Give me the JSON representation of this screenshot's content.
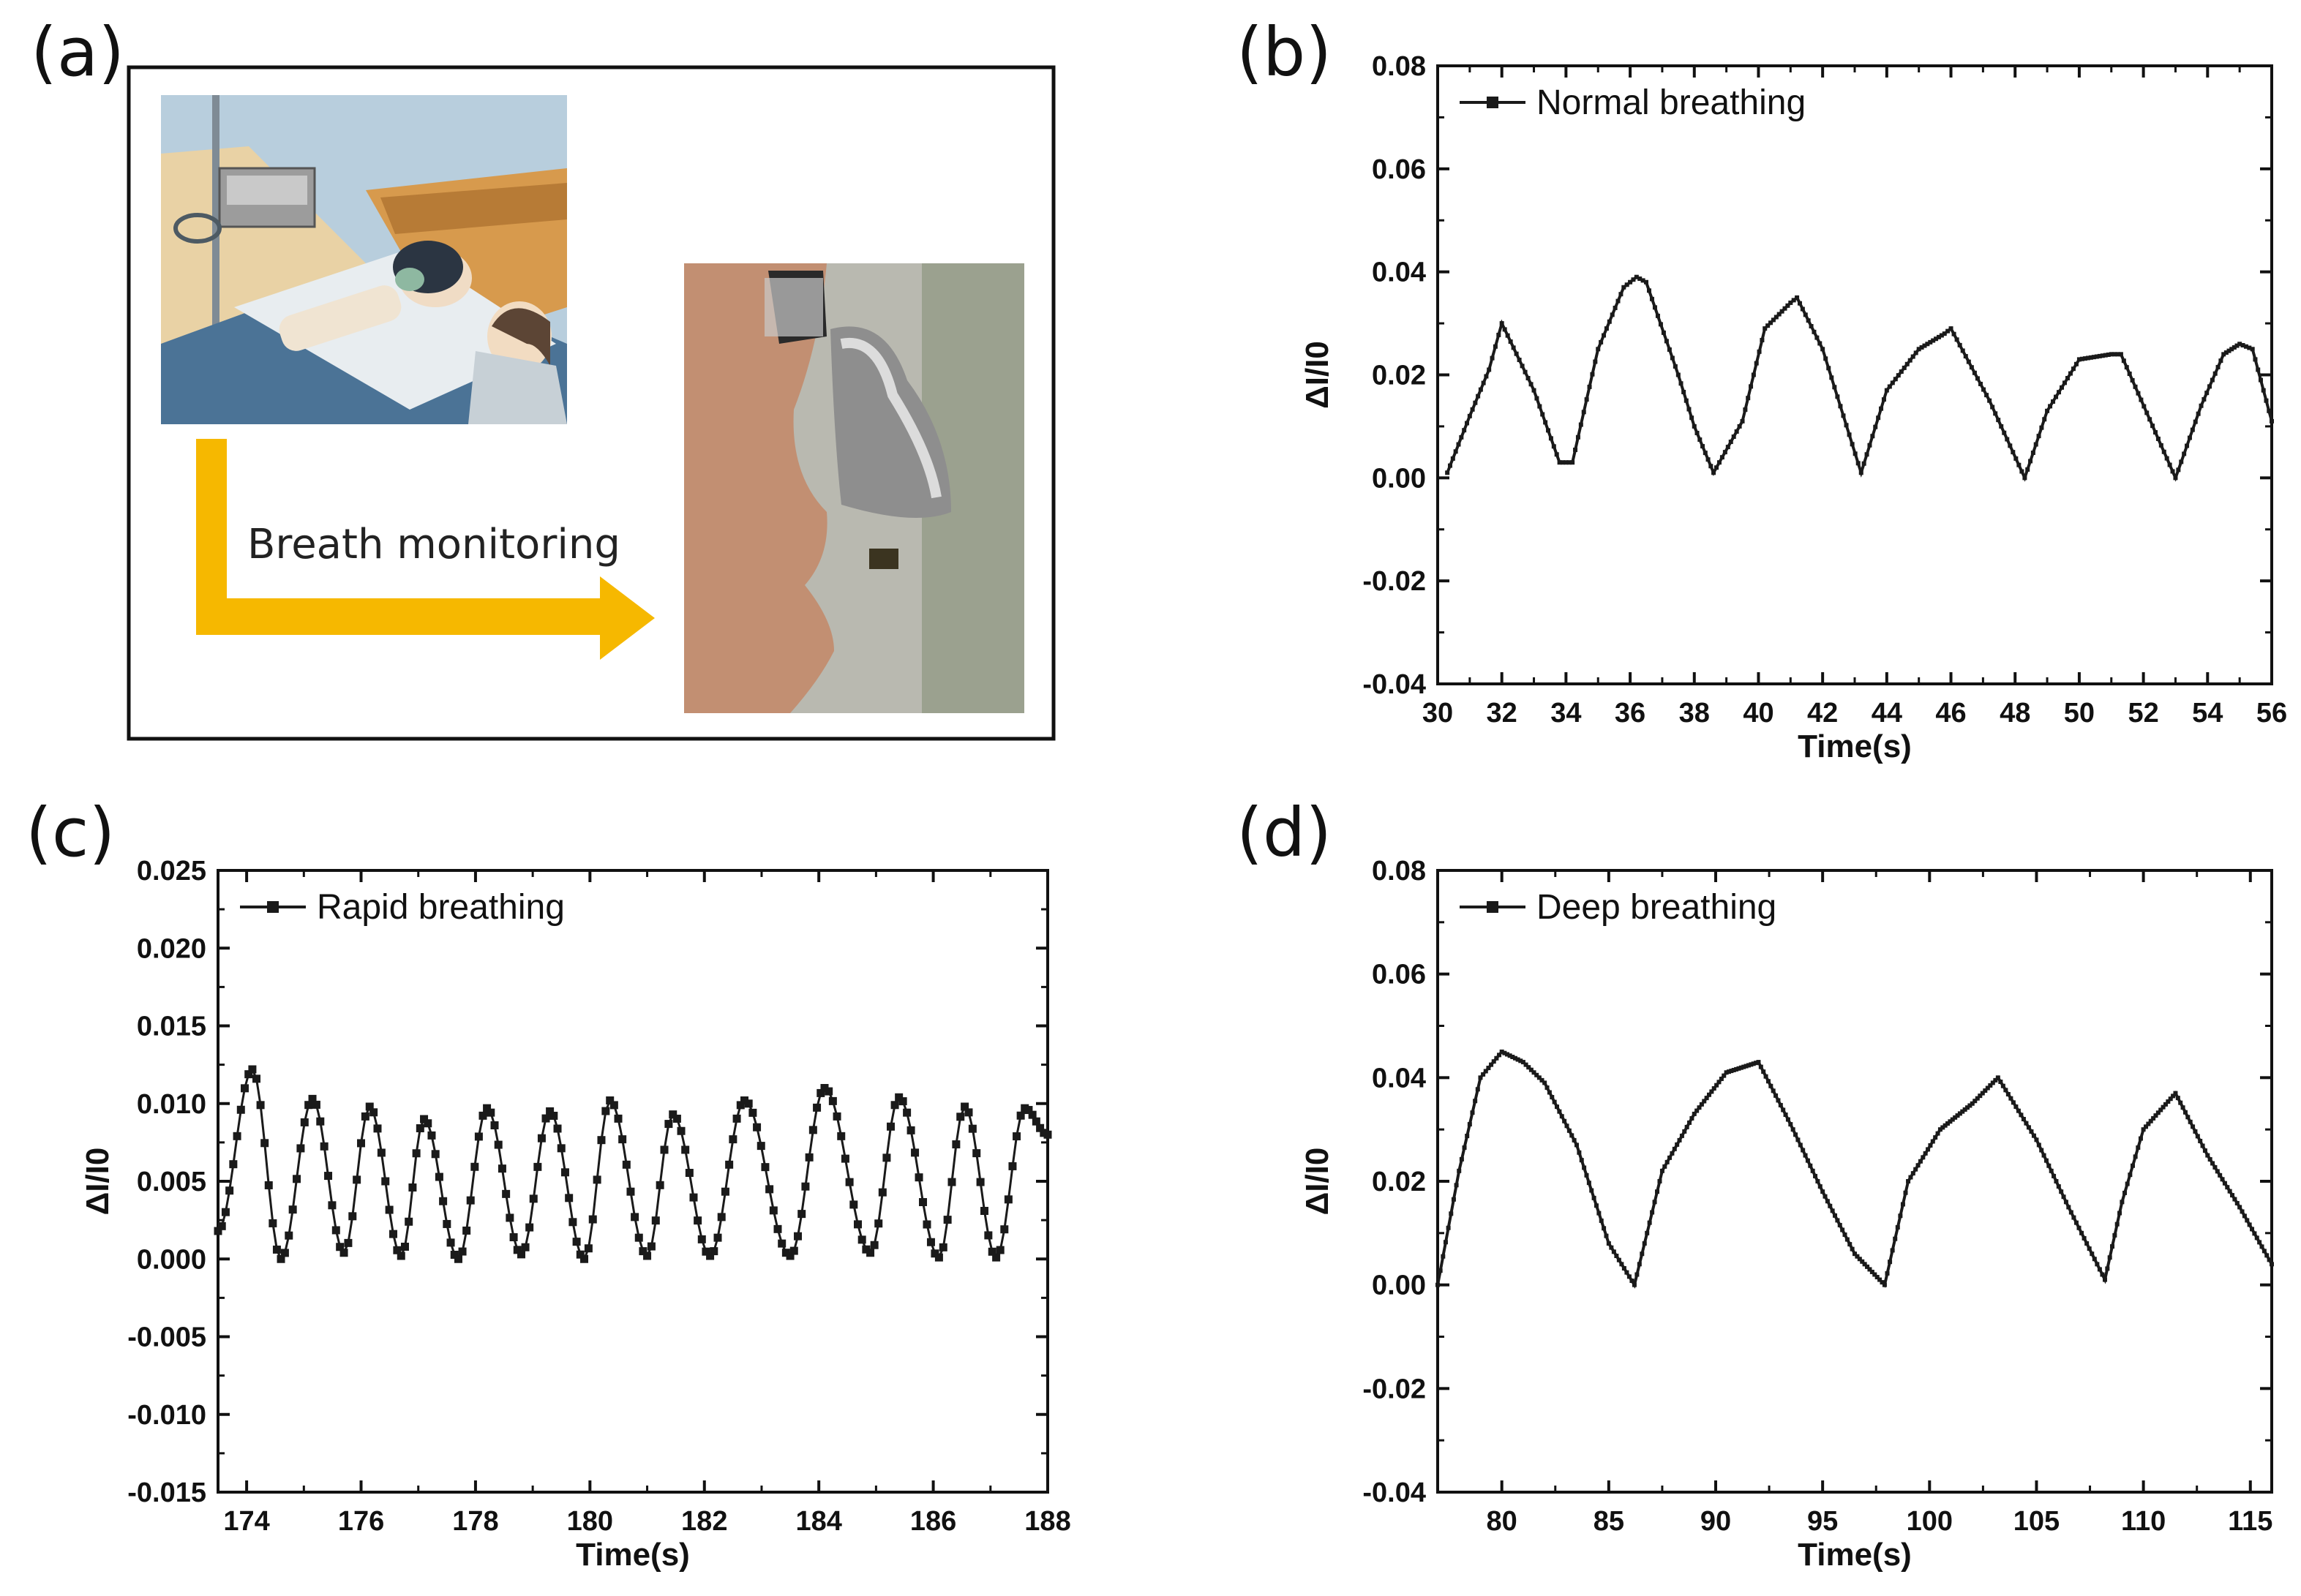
{
  "panels": {
    "a": "(a)",
    "b": "(b)",
    "c": "(c)",
    "d": "(d)"
  },
  "illustration": {
    "arrow_label": "Breath monitoring",
    "arrow_color": "#f6b800",
    "scene_left": "patient-in-hospital-bed-with-sensor-cartoon",
    "scene_right": "face-profile-with-nasal-mask-sensor-photo"
  },
  "colors": {
    "line": "#1a1a1a",
    "axis": "#111111"
  },
  "chart_data": [
    {
      "id": "b",
      "type": "line",
      "title": "",
      "legend": "Normal breathing",
      "legend_marker": "square",
      "xlabel": "Time(s)",
      "ylabel": "ΔI/I0",
      "xlim": [
        30,
        56
      ],
      "ylim": [
        -0.04,
        0.08
      ],
      "xticks": [
        30,
        32,
        34,
        36,
        38,
        40,
        42,
        44,
        46,
        48,
        50,
        52,
        54,
        56
      ],
      "xtick_labels": [
        "30",
        "32",
        "34",
        "36",
        "38",
        "40",
        "42",
        "44",
        "46",
        "48",
        "50",
        "52",
        "54",
        "56"
      ],
      "yticks": [
        -0.04,
        -0.02,
        0,
        0.02,
        0.04,
        0.06,
        0.08
      ],
      "ytick_labels": [
        "-0.04",
        "-0.02",
        "0.00",
        "0.02",
        "0.04",
        "0.06",
        "0.08"
      ],
      "x": [
        30.3,
        31.0,
        31.6,
        32.0,
        33.0,
        33.8,
        34.2,
        35.0,
        35.8,
        36.2,
        36.5,
        37.5,
        38.0,
        38.6,
        39.5,
        40.2,
        41.0,
        41.2,
        42.0,
        43.2,
        44.0,
        45.0,
        45.8,
        46.0,
        47.2,
        48.3,
        49.0,
        50.0,
        51.0,
        51.3,
        53.0,
        53.8,
        54.5,
        55.0,
        55.4,
        56.0
      ],
      "y": [
        0.001,
        0.012,
        0.021,
        0.03,
        0.017,
        0.003,
        0.003,
        0.025,
        0.037,
        0.039,
        0.038,
        0.02,
        0.01,
        0.001,
        0.011,
        0.029,
        0.034,
        0.035,
        0.025,
        0.001,
        0.017,
        0.025,
        0.028,
        0.029,
        0.015,
        0.0,
        0.013,
        0.023,
        0.024,
        0.024,
        0.0,
        0.014,
        0.024,
        0.026,
        0.025,
        0.011
      ]
    },
    {
      "id": "c",
      "type": "line",
      "title": "",
      "legend": "Rapid breathing",
      "legend_marker": "square",
      "xlabel": "Time(s)",
      "ylabel": "ΔI/I0",
      "xlim": [
        173.5,
        188
      ],
      "ylim": [
        -0.015,
        0.025
      ],
      "xticks": [
        174,
        176,
        178,
        180,
        182,
        184,
        186,
        188
      ],
      "xtick_labels": [
        "174",
        "176",
        "178",
        "180",
        "182",
        "184",
        "186",
        "188"
      ],
      "yticks": [
        -0.015,
        -0.01,
        -0.005,
        0,
        0.005,
        0.01,
        0.015,
        0.02,
        0.025
      ],
      "ytick_labels": [
        "-0.015",
        "-0.010",
        "-0.005",
        "0.000",
        "0.005",
        "0.010",
        "0.015",
        "0.020",
        "0.025"
      ],
      "peaks": [
        {
          "x": 174.1,
          "y": 0.0122
        },
        {
          "x": 175.15,
          "y": 0.0103
        },
        {
          "x": 176.15,
          "y": 0.0098
        },
        {
          "x": 177.1,
          "y": 0.009
        },
        {
          "x": 178.2,
          "y": 0.0097
        },
        {
          "x": 179.3,
          "y": 0.0095
        },
        {
          "x": 180.35,
          "y": 0.0102
        },
        {
          "x": 181.45,
          "y": 0.0093
        },
        {
          "x": 182.7,
          "y": 0.0102
        },
        {
          "x": 184.1,
          "y": 0.011
        },
        {
          "x": 185.4,
          "y": 0.0104
        },
        {
          "x": 186.55,
          "y": 0.0098
        },
        {
          "x": 187.6,
          "y": 0.0097
        }
      ],
      "troughs": [
        {
          "x": 173.5,
          "y": 0.0018
        },
        {
          "x": 174.6,
          "y": 0.0
        },
        {
          "x": 175.7,
          "y": 0.0004
        },
        {
          "x": 176.7,
          "y": 0.0002
        },
        {
          "x": 177.7,
          "y": 0.0
        },
        {
          "x": 178.8,
          "y": 0.0003
        },
        {
          "x": 179.9,
          "y": 0.0
        },
        {
          "x": 181.0,
          "y": 0.0002
        },
        {
          "x": 182.1,
          "y": 0.0002
        },
        {
          "x": 183.5,
          "y": 0.0002
        },
        {
          "x": 184.9,
          "y": 0.0004
        },
        {
          "x": 186.1,
          "y": 0.0001
        },
        {
          "x": 187.1,
          "y": 0.0001
        },
        {
          "x": 188.0,
          "y": 0.008
        }
      ]
    },
    {
      "id": "d",
      "type": "line",
      "title": "",
      "legend": "Deep breathing",
      "legend_marker": "square",
      "xlabel": "Time(s)",
      "ylabel": "ΔI/I0",
      "xlim": [
        77,
        116
      ],
      "ylim": [
        -0.04,
        0.08
      ],
      "xticks": [
        80,
        85,
        90,
        95,
        100,
        105,
        110,
        115
      ],
      "xtick_labels": [
        "80",
        "85",
        "90",
        "95",
        "100",
        "105",
        "110",
        "115"
      ],
      "yticks": [
        -0.04,
        -0.02,
        0,
        0.02,
        0.04,
        0.06,
        0.08
      ],
      "ytick_labels": [
        "-0.04",
        "-0.02",
        "0.00",
        "0.02",
        "0.04",
        "0.06",
        "0.08"
      ],
      "x": [
        77.0,
        78.0,
        79.0,
        80.0,
        81.0,
        82.0,
        83.5,
        85.0,
        86.2,
        87.5,
        89.0,
        90.5,
        92.0,
        93.5,
        95.0,
        96.5,
        97.9,
        99.0,
        100.5,
        102.0,
        103.2,
        105.0,
        106.5,
        108.2,
        109.0,
        110.0,
        111.5,
        113.0,
        114.5,
        116.0
      ],
      "y": [
        0.0,
        0.022,
        0.04,
        0.045,
        0.043,
        0.039,
        0.027,
        0.008,
        0.0,
        0.022,
        0.033,
        0.041,
        0.043,
        0.031,
        0.018,
        0.006,
        0.0,
        0.02,
        0.03,
        0.035,
        0.04,
        0.028,
        0.015,
        0.001,
        0.016,
        0.03,
        0.037,
        0.025,
        0.015,
        0.004
      ]
    }
  ]
}
